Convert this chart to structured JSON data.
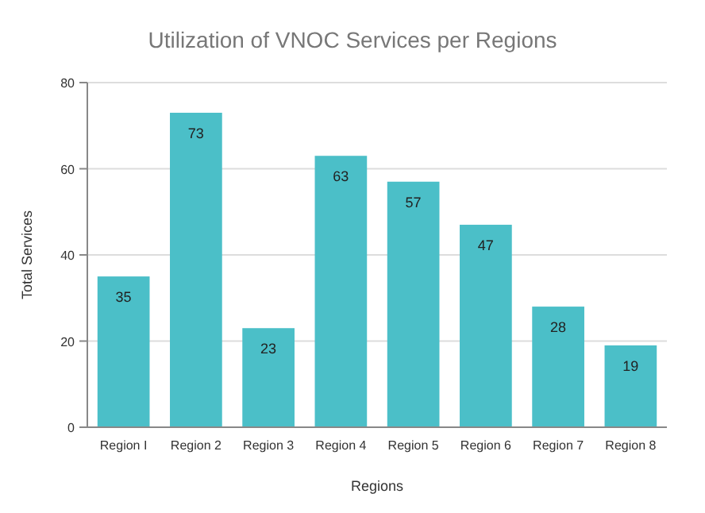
{
  "chart_data": {
    "type": "bar",
    "title": "Utilization of VNOC Services per Regions",
    "xlabel": "Regions",
    "ylabel": "Total Services",
    "categories": [
      "Region I",
      "Region 2",
      "Region 3",
      "Region 4",
      "Region 5",
      "Region 6",
      "Region 7",
      "Region 8"
    ],
    "values": [
      35,
      73,
      23,
      63,
      57,
      47,
      28,
      19
    ],
    "color": "#4bbfc8",
    "ylim": [
      0,
      80
    ],
    "yticks": [
      0,
      20,
      40,
      60,
      80
    ],
    "grid": "y",
    "data_labels": true
  }
}
